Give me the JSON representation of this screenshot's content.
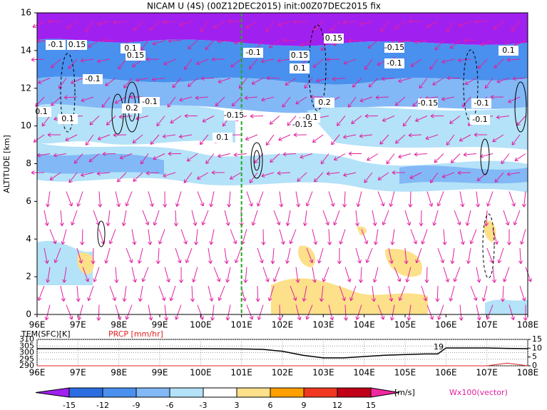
{
  "chart_data": [
    {
      "type": "vector-contour",
      "title": "NICAM U (4S) (00Z12DEC2015) init:00Z07DEC2015 fix",
      "y_label": "ALTITUDE [km]",
      "xlim": [
        96,
        108
      ],
      "xticks": [
        {
          "value": 96,
          "label": "96E"
        },
        {
          "value": 97,
          "label": "97E"
        },
        {
          "value": 98,
          "label": "98E"
        },
        {
          "value": 99,
          "label": "99E"
        },
        {
          "value": 100,
          "label": "100E"
        },
        {
          "value": 101,
          "label": "101E"
        },
        {
          "value": 102,
          "label": "102E"
        },
        {
          "value": 103,
          "label": "103E"
        },
        {
          "value": 104,
          "label": "104E"
        },
        {
          "value": 105,
          "label": "105E"
        },
        {
          "value": 106,
          "label": "106E"
        },
        {
          "value": 107,
          "label": "107E"
        },
        {
          "value": 108,
          "label": "108E"
        }
      ],
      "ylim": [
        0,
        16
      ],
      "yticks": [
        0,
        2,
        4,
        6,
        8,
        10,
        12,
        14,
        16
      ],
      "reference_x": 101,
      "reference_color": "#22aa22",
      "contour_labels": [
        "-0.1",
        "0.15",
        "0.1",
        "0.15",
        "-0.1",
        "0.1",
        "0.2",
        "-0.1",
        "-0.1",
        "0.15",
        "0.1",
        "-0.15",
        "-0.1",
        "0.15",
        "-0.15",
        "0.2",
        "-0.1",
        "-0.15",
        "-0.1",
        "0.1",
        "0.1",
        "0.1",
        "-0.1",
        "-0.15"
      ],
      "colorbar": {
        "levels": [
          -15,
          -12,
          -9,
          -6,
          -3,
          3,
          6,
          9,
          12,
          15
        ],
        "colors": [
          "#a020f0",
          "#2b6ce0",
          "#4a90ee",
          "#82b8f6",
          "#b4e2f8",
          "#ffffff",
          "#fde08a",
          "#ffa000",
          "#f03820",
          "#c00018",
          "#f028a0"
        ],
        "unit": "[m/s]"
      },
      "vector_label": "Wx100(vector)"
    },
    {
      "type": "line",
      "x": [
        96,
        97,
        98,
        99,
        100,
        101,
        101.5,
        102,
        102.5,
        103,
        103.5,
        104,
        104.5,
        105,
        105.5,
        105.8,
        106,
        106.5,
        107,
        107.5,
        108
      ],
      "series": [
        {
          "name": "TEM(SFC)[K]",
          "color": "#000000",
          "values": [
            303,
            303,
            303,
            303,
            303,
            302.8,
            302.5,
            301,
            298,
            296,
            296,
            297,
            298,
            298.5,
            299,
            299,
            303.5,
            303.5,
            303.5,
            303.2,
            303
          ]
        },
        {
          "name": "PRCP [mm/hr]",
          "color": "#e02020",
          "axis": "y2",
          "values": [
            0,
            0,
            0,
            0,
            0,
            0,
            0,
            0,
            0,
            0,
            0,
            0,
            0,
            0,
            0,
            0,
            0,
            0,
            0,
            1.5,
            0
          ]
        }
      ],
      "annotation": "19",
      "xlim": [
        96,
        108
      ],
      "xticks": [
        {
          "value": 96,
          "label": "96E"
        },
        {
          "value": 97,
          "label": "97E"
        },
        {
          "value": 98,
          "label": "98E"
        },
        {
          "value": 99,
          "label": "99E"
        },
        {
          "value": 100,
          "label": "100E"
        },
        {
          "value": 101,
          "label": "101E"
        },
        {
          "value": 102,
          "label": "102E"
        },
        {
          "value": 103,
          "label": "103E"
        },
        {
          "value": 104,
          "label": "104E"
        },
        {
          "value": 105,
          "label": "105E"
        },
        {
          "value": 106,
          "label": "106E"
        },
        {
          "value": 107,
          "label": "107E"
        },
        {
          "value": 108,
          "label": "108E"
        }
      ],
      "ylim": [
        290,
        310
      ],
      "yticks": [
        290,
        295,
        300,
        305,
        310
      ],
      "y2lim": [
        0,
        15
      ],
      "y2ticks": [
        0,
        5,
        10,
        15
      ]
    }
  ]
}
